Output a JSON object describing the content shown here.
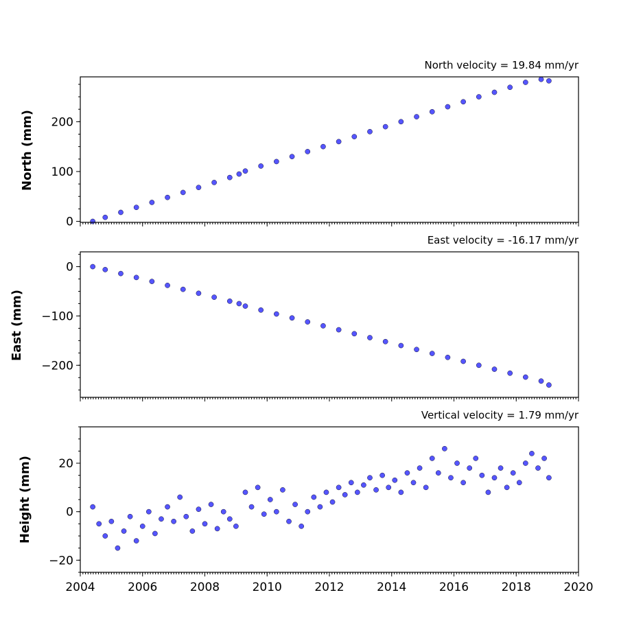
{
  "colors": {
    "marker_fill": "#5555ff",
    "marker_edge": "#111133",
    "background": "#ffffff"
  },
  "chart_data": [
    {
      "type": "scatter",
      "title": "North velocity = 19.84 mm/yr",
      "ylabel": "North (mm)",
      "xlim": [
        2004,
        2020
      ],
      "ylim": [
        -2,
        290
      ],
      "yticks": [
        0,
        100,
        200
      ],
      "ytick_labels": [
        "0",
        "100",
        "200"
      ],
      "xticks": [
        2004,
        2006,
        2008,
        2010,
        2012,
        2014,
        2016,
        2018,
        2020
      ],
      "xtick_labels": [],
      "series": [
        {
          "x": [
            2004.4,
            2004.8,
            2005.3,
            2005.8,
            2006.3,
            2006.8,
            2007.3,
            2007.8,
            2008.3,
            2008.8,
            2009.1,
            2009.3,
            2009.8,
            2010.3,
            2010.8,
            2011.3,
            2011.8,
            2012.3,
            2012.8,
            2013.3,
            2013.8,
            2014.3,
            2014.8,
            2015.3,
            2015.8,
            2016.3,
            2016.8,
            2017.3,
            2017.8,
            2018.3,
            2018.8,
            2019.05
          ],
          "y": [
            0,
            8,
            18,
            28,
            38,
            48,
            58,
            68,
            78,
            88,
            95,
            101,
            111,
            120,
            130,
            140,
            150,
            160,
            170,
            180,
            190,
            200,
            210,
            220,
            230,
            240,
            250,
            259,
            269,
            279,
            285,
            282
          ]
        }
      ]
    },
    {
      "type": "scatter",
      "title": "East velocity = -16.17 mm/yr",
      "ylabel": "East (mm)",
      "xlim": [
        2004,
        2020
      ],
      "ylim": [
        -265,
        30
      ],
      "yticks": [
        0,
        -100,
        -200
      ],
      "ytick_labels": [
        "0",
        "−100",
        "−200"
      ],
      "xticks": [
        2004,
        2006,
        2008,
        2010,
        2012,
        2014,
        2016,
        2018,
        2020
      ],
      "xtick_labels": [],
      "series": [
        {
          "x": [
            2004.4,
            2004.8,
            2005.3,
            2005.8,
            2006.3,
            2006.8,
            2007.3,
            2007.8,
            2008.3,
            2008.8,
            2009.1,
            2009.3,
            2009.8,
            2010.3,
            2010.8,
            2011.3,
            2011.8,
            2012.3,
            2012.8,
            2013.3,
            2013.8,
            2014.3,
            2014.8,
            2015.3,
            2015.8,
            2016.3,
            2016.8,
            2017.3,
            2017.8,
            2018.3,
            2018.8,
            2019.05
          ],
          "y": [
            0,
            -6,
            -14,
            -22,
            -30,
            -38,
            -46,
            -54,
            -62,
            -70,
            -75,
            -80,
            -88,
            -96,
            -104,
            -112,
            -120,
            -128,
            -136,
            -144,
            -152,
            -160,
            -168,
            -176,
            -184,
            -192,
            -200,
            -208,
            -216,
            -224,
            -232,
            -240
          ]
        }
      ]
    },
    {
      "type": "scatter",
      "title": "Vertical velocity = 1.79 mm/yr",
      "ylabel": "Height (mm)",
      "xlim": [
        2004,
        2020
      ],
      "ylim": [
        -25,
        35
      ],
      "yticks": [
        20,
        0,
        -20
      ],
      "ytick_labels": [
        "20",
        "0",
        "−20"
      ],
      "xticks": [
        2004,
        2006,
        2008,
        2010,
        2012,
        2014,
        2016,
        2018,
        2020
      ],
      "xtick_labels": [
        "2004",
        "2006",
        "2008",
        "2010",
        "2012",
        "2014",
        "2016",
        "2018",
        "2020"
      ],
      "series": [
        {
          "x": [
            2004.4,
            2004.6,
            2004.8,
            2005.0,
            2005.2,
            2005.4,
            2005.6,
            2005.8,
            2006.0,
            2006.2,
            2006.4,
            2006.6,
            2006.8,
            2007.0,
            2007.2,
            2007.4,
            2007.6,
            2007.8,
            2008.0,
            2008.2,
            2008.4,
            2008.6,
            2008.8,
            2009.0,
            2009.3,
            2009.5,
            2009.7,
            2009.9,
            2010.1,
            2010.3,
            2010.5,
            2010.7,
            2010.9,
            2011.1,
            2011.3,
            2011.5,
            2011.7,
            2011.9,
            2012.1,
            2012.3,
            2012.5,
            2012.7,
            2012.9,
            2013.1,
            2013.3,
            2013.5,
            2013.7,
            2013.9,
            2014.1,
            2014.3,
            2014.5,
            2014.7,
            2014.9,
            2015.1,
            2015.3,
            2015.5,
            2015.7,
            2015.9,
            2016.1,
            2016.3,
            2016.5,
            2016.7,
            2016.9,
            2017.1,
            2017.3,
            2017.5,
            2017.7,
            2017.9,
            2018.1,
            2018.3,
            2018.5,
            2018.7,
            2018.9,
            2019.05
          ],
          "y": [
            2,
            -5,
            -10,
            -4,
            -15,
            -8,
            -2,
            -12,
            -6,
            0,
            -9,
            -3,
            2,
            -4,
            6,
            -2,
            -8,
            1,
            -5,
            3,
            -7,
            0,
            -3,
            -6,
            8,
            2,
            10,
            -1,
            5,
            0,
            9,
            -4,
            3,
            -6,
            0,
            6,
            2,
            8,
            4,
            10,
            7,
            12,
            8,
            11,
            14,
            9,
            15,
            10,
            13,
            8,
            16,
            12,
            18,
            10,
            22,
            16,
            26,
            14,
            20,
            12,
            18,
            22,
            15,
            8,
            14,
            18,
            10,
            16,
            12,
            20,
            24,
            18,
            22,
            14
          ]
        }
      ]
    }
  ]
}
